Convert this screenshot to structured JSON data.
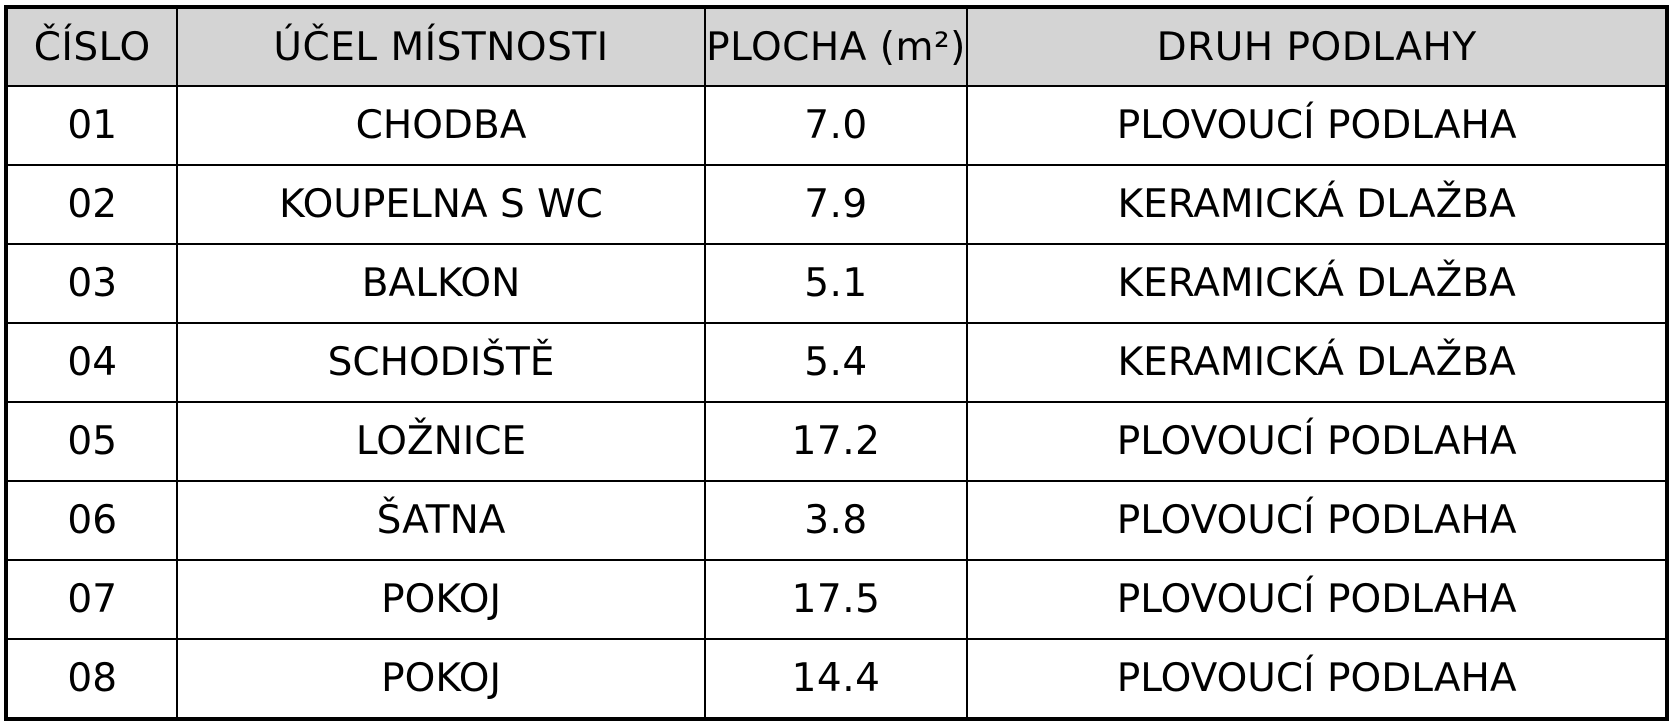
{
  "table": {
    "headers": {
      "number": "ČÍSLO",
      "purpose": "ÚČEL MÍSTNOSTI",
      "area": "PLOCHA (m²)",
      "floor": "DRUH PODLAHY"
    },
    "rows": [
      {
        "number": "01",
        "purpose": "CHODBA",
        "area": "7.0",
        "floor": "PLOVOUCÍ PODLAHA"
      },
      {
        "number": "02",
        "purpose": "KOUPELNA S WC",
        "area": "7.9",
        "floor": "KERAMICKÁ DLAŽBA"
      },
      {
        "number": "03",
        "purpose": "BALKON",
        "area": "5.1",
        "floor": "KERAMICKÁ DLAŽBA"
      },
      {
        "number": "04",
        "purpose": "SCHODIŠTĚ",
        "area": "5.4",
        "floor": "KERAMICKÁ DLAŽBA"
      },
      {
        "number": "05",
        "purpose": "LOŽNICE",
        "area": "17.2",
        "floor": "PLOVOUCÍ PODLAHA"
      },
      {
        "number": "06",
        "purpose": "ŠATNA",
        "area": "3.8",
        "floor": "PLOVOUCÍ PODLAHA"
      },
      {
        "number": "07",
        "purpose": "POKOJ",
        "area": "17.5",
        "floor": "PLOVOUCÍ PODLAHA"
      },
      {
        "number": "08",
        "purpose": "POKOJ",
        "area": "14.4",
        "floor": "PLOVOUCÍ PODLAHA"
      }
    ]
  },
  "colors": {
    "header_background": "#d4d4d4",
    "border": "#000000",
    "text": "#000000",
    "background": "#ffffff"
  }
}
